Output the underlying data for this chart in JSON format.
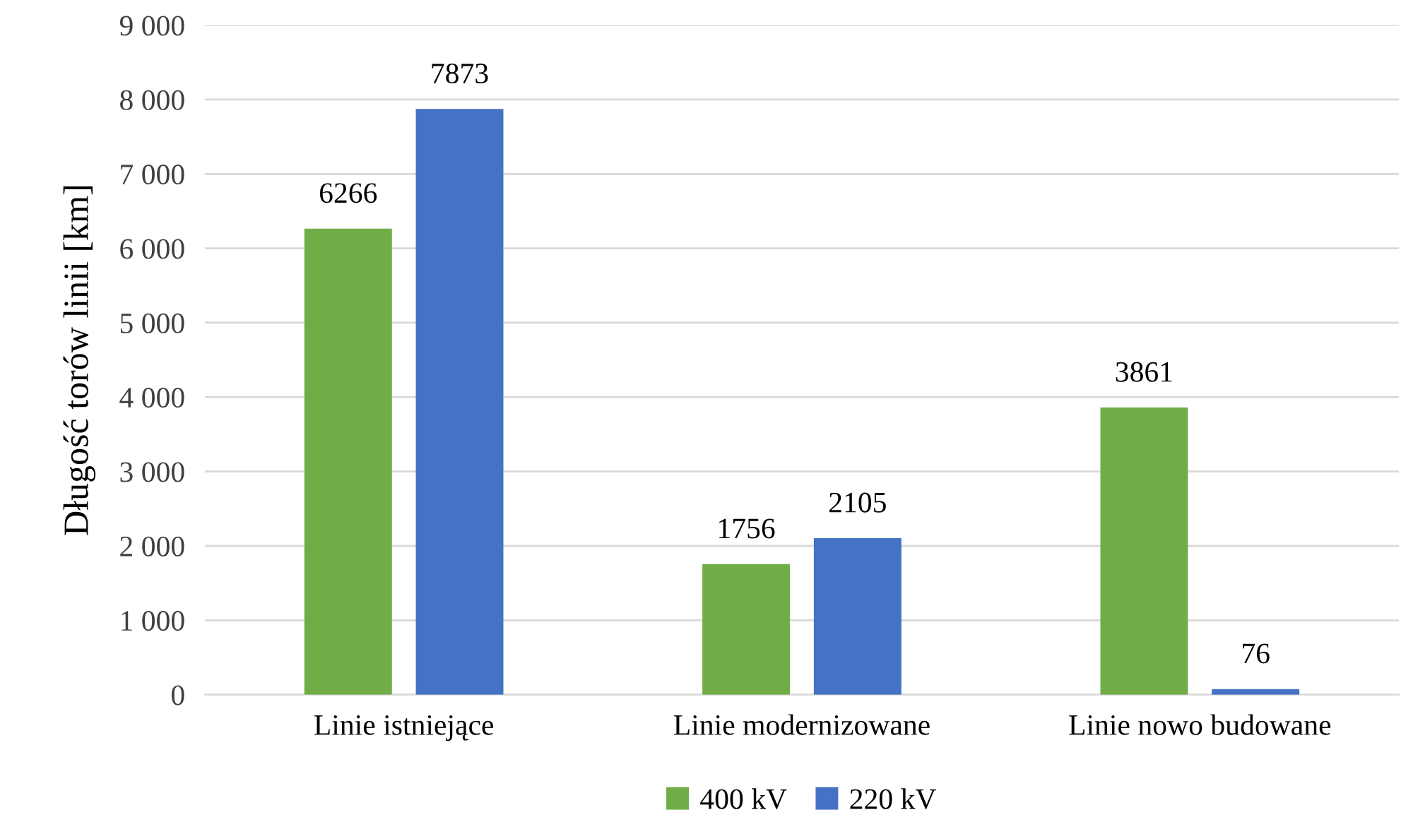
{
  "chart_data": {
    "type": "bar",
    "ylabel": "Długość torów linii [km]",
    "categories": [
      "Linie istniejące",
      "Linie modernizowane",
      "Linie nowo budowane"
    ],
    "series": [
      {
        "name": "400 kV",
        "color": "#70ad47",
        "values": [
          6266,
          1756,
          3861
        ]
      },
      {
        "name": "220 kV",
        "color": "#4472c4",
        "values": [
          7873,
          2105,
          76
        ]
      }
    ],
    "ylim": [
      0,
      9000
    ],
    "yticks": [
      0,
      {
        "value": 1000,
        "label": "1 000"
      },
      {
        "value": 2000,
        "label": "2 000"
      },
      {
        "value": 3000,
        "label": "3 000"
      },
      {
        "value": 4000,
        "label": "4 000"
      },
      {
        "value": 5000,
        "label": "5 000"
      },
      {
        "value": 6000,
        "label": "6 000"
      },
      {
        "value": 7000,
        "label": "7 000"
      },
      {
        "value": 8000,
        "label": "8 000"
      },
      {
        "value": 9000,
        "label": "9 000"
      }
    ],
    "grid": "y",
    "legend": "bottom",
    "data_labels": true
  }
}
